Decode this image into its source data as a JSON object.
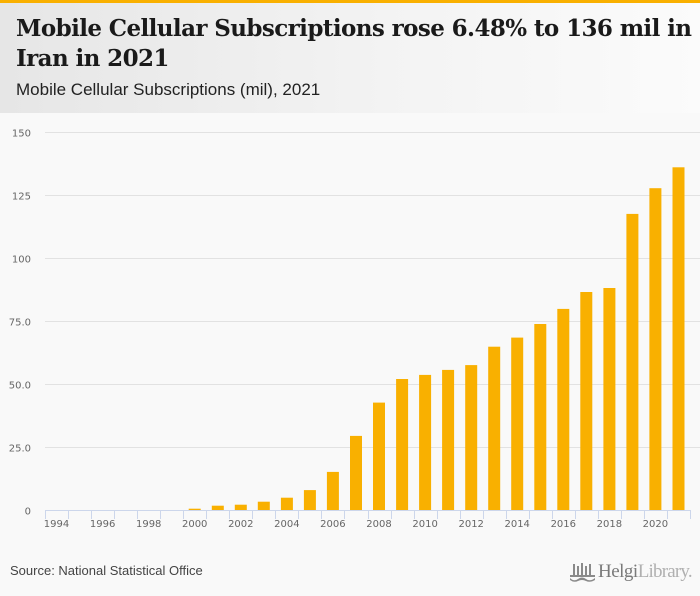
{
  "header": {
    "title": "Mobile Cellular Subscriptions rose 6.48% to 136 mil in Iran in 2021",
    "subtitle": "Mobile Cellular Subscriptions (mil), 2021"
  },
  "footer": {
    "source": "Source: National Statistical Office",
    "logo_bold": "Helgi",
    "logo_light": "Library."
  },
  "colors": {
    "bar": "#f9b000",
    "accent": "#f9b000",
    "grid": "#e2e2e2",
    "axis": "#ccd6eb",
    "tick_text": "#666666"
  },
  "chart_data": {
    "type": "bar",
    "title": "Mobile Cellular Subscriptions rose 6.48% to 136 mil in Iran in 2021",
    "subtitle": "Mobile Cellular Subscriptions (mil), 2021",
    "xlabel": "",
    "ylabel": "",
    "ylim": [
      0,
      150
    ],
    "grid": true,
    "legend": "none",
    "yticks": [
      0,
      25,
      50,
      75,
      100,
      125,
      150
    ],
    "ytick_labels": [
      "0",
      "25.0",
      "50.0",
      "75.0",
      "100",
      "125",
      "150"
    ],
    "categories": [
      "1994",
      "1995",
      "1996",
      "1997",
      "1998",
      "1999",
      "2000",
      "2001",
      "2002",
      "2003",
      "2004",
      "2005",
      "2006",
      "2007",
      "2008",
      "2009",
      "2010",
      "2011",
      "2012",
      "2013",
      "2014",
      "2015",
      "2016",
      "2017",
      "2018",
      "2019",
      "2020",
      "2021"
    ],
    "xtick_labels": [
      "1994",
      "1996",
      "1998",
      "2000",
      "2002",
      "2004",
      "2006",
      "2008",
      "2010",
      "2012",
      "2014",
      "2016",
      "2018",
      "2020"
    ],
    "series": [
      {
        "name": "Mobile Cellular Subscriptions (mil)",
        "values": [
          0.0,
          0.0,
          0.0,
          0.0,
          0.0,
          0.0,
          0.5,
          1.7,
          2.1,
          3.3,
          4.9,
          7.9,
          15.1,
          29.4,
          42.6,
          52.0,
          53.6,
          55.6,
          57.5,
          64.8,
          68.4,
          73.8,
          79.8,
          86.5,
          88.1,
          117.5,
          127.7,
          136.0
        ]
      }
    ]
  }
}
